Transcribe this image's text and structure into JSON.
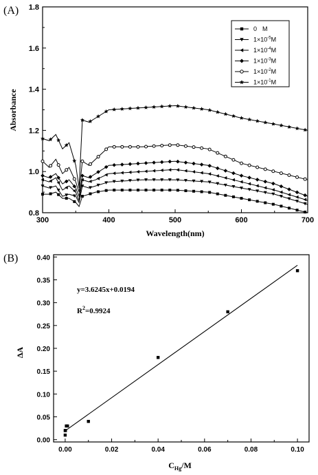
{
  "chart_data": [
    {
      "type": "line",
      "panel_label": "(A)",
      "xlabel": "Wavelength(nm)",
      "ylabel": "Absorbance",
      "xlim": [
        300,
        700
      ],
      "ylim": [
        0.8,
        1.8
      ],
      "xticks": [
        "300",
        "400",
        "500",
        "600",
        "700"
      ],
      "yticks": [
        "0.8",
        "1.0",
        "1.2",
        "1.4",
        "1.6",
        "1.8"
      ],
      "legend_position": "top-right",
      "legend": [
        {
          "name": "0",
          "exp": "",
          "marker": "square"
        },
        {
          "name": "1×10",
          "exp": "-5",
          "marker": "triangle-down"
        },
        {
          "name": "1×10",
          "exp": "-4",
          "marker": "triangle-left"
        },
        {
          "name": "1×10",
          "exp": "-3",
          "marker": "diamond"
        },
        {
          "name": "1×10",
          "exp": "-2",
          "marker": "circle-open"
        },
        {
          "name": "1×10",
          "exp": "-1",
          "marker": "star"
        }
      ],
      "legend_unit": "M",
      "x": [
        300,
        310,
        320,
        330,
        340,
        350,
        355,
        360,
        370,
        380,
        400,
        450,
        500,
        550,
        600,
        650,
        700
      ],
      "series": [
        {
          "name": "0 M",
          "values": [
            0.89,
            0.89,
            0.9,
            0.87,
            0.87,
            0.85,
            0.83,
            0.88,
            0.89,
            0.9,
            0.91,
            0.91,
            0.91,
            0.9,
            0.87,
            0.84,
            0.8
          ]
        },
        {
          "name": "1×10-5 M",
          "values": [
            0.93,
            0.92,
            0.93,
            0.88,
            0.89,
            0.88,
            0.85,
            0.93,
            0.92,
            0.93,
            0.95,
            0.96,
            0.96,
            0.95,
            0.92,
            0.89,
            0.84
          ]
        },
        {
          "name": "1×10-4 M",
          "values": [
            0.96,
            0.95,
            0.97,
            0.91,
            0.93,
            0.9,
            0.86,
            0.96,
            0.95,
            0.96,
            0.99,
            1.0,
            1.01,
            0.99,
            0.95,
            0.91,
            0.86
          ]
        },
        {
          "name": "1×10-3 M",
          "values": [
            0.98,
            0.97,
            0.99,
            0.94,
            0.96,
            0.92,
            0.88,
            0.98,
            0.97,
            0.99,
            1.03,
            1.04,
            1.05,
            1.03,
            0.98,
            0.94,
            0.88
          ]
        },
        {
          "name": "1×10-2 M",
          "values": [
            1.05,
            1.02,
            1.06,
            0.99,
            1.02,
            0.95,
            0.9,
            1.05,
            1.03,
            1.06,
            1.12,
            1.12,
            1.13,
            1.11,
            1.04,
            1.0,
            0.96
          ]
        },
        {
          "name": "1×10-1 M",
          "values": [
            1.16,
            1.15,
            1.18,
            1.11,
            1.14,
            1.03,
            0.92,
            1.25,
            1.24,
            1.26,
            1.3,
            1.31,
            1.32,
            1.3,
            1.26,
            1.23,
            1.2
          ]
        }
      ]
    },
    {
      "type": "scatter",
      "panel_label": "(B)",
      "xlabel_main": "C",
      "xlabel_sub": "Hg",
      "xlabel_rest": "/M",
      "ylabel": "ΔA",
      "xlim": [
        -0.005,
        0.105
      ],
      "ylim": [
        -0.005,
        0.405
      ],
      "xticks": [
        "0.00",
        "0.02",
        "0.04",
        "0.06",
        "0.08",
        "0.10"
      ],
      "yticks": [
        "0.00",
        "0.05",
        "0.10",
        "0.15",
        "0.20",
        "0.25",
        "0.30",
        "0.35",
        "0.40"
      ],
      "equation": "y=3.6245x+0.0194",
      "r2_label": "R",
      "r2_sup": "2",
      "r2_value": "=0.9924",
      "points": {
        "x": [
          0.0,
          0.0,
          0.0001,
          0.0005,
          0.001,
          0.01,
          0.04,
          0.07,
          0.1
        ],
        "y": [
          0.01,
          0.02,
          0.02,
          0.03,
          0.03,
          0.04,
          0.18,
          0.28,
          0.37
        ]
      },
      "fit": {
        "slope": 3.6245,
        "intercept": 0.0194,
        "x_range": [
          0.0,
          0.1
        ]
      }
    }
  ]
}
